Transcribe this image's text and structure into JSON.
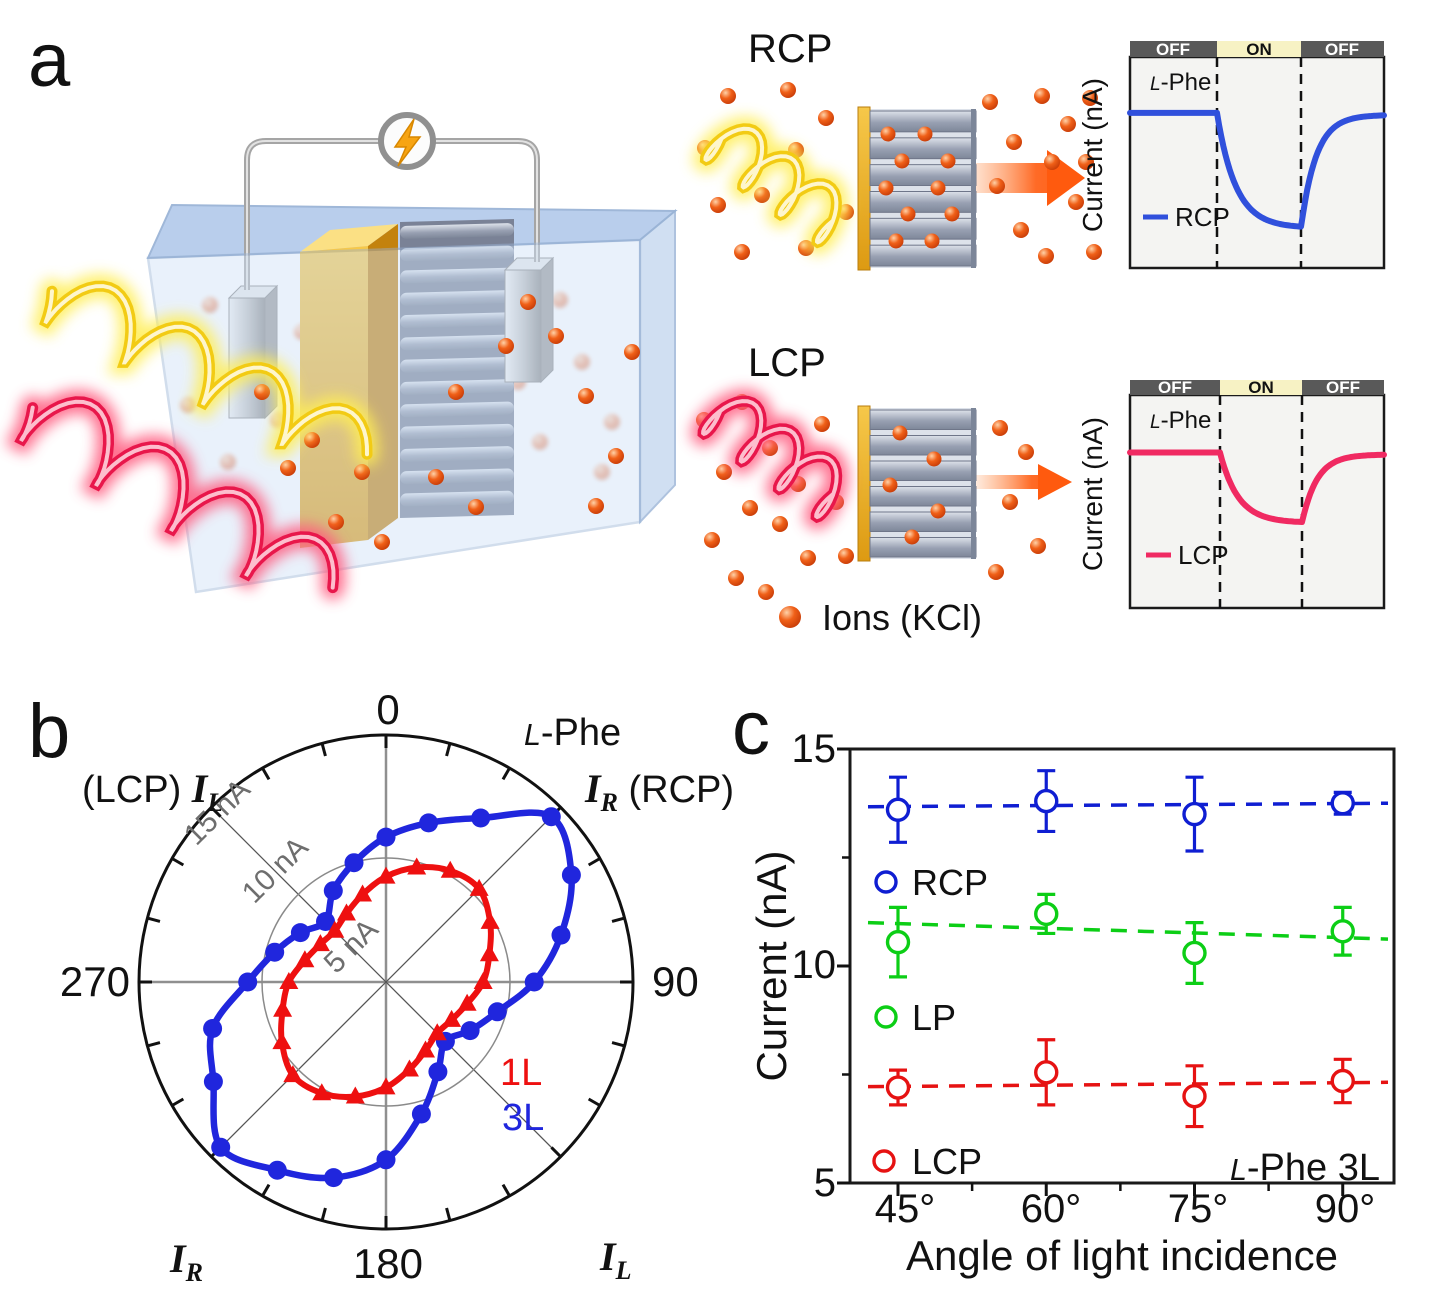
{
  "colors": {
    "rcp_blue": "#3050DC",
    "lcp_pink": "#F02A62",
    "polar_blue": "#2026DD",
    "polar_red": "#EE1010",
    "c_blue": "#0F1ED2",
    "c_green": "#0CCE16",
    "c_red": "#E61212",
    "ion_orange": "#F15A17",
    "arrow_orange": "#FF5A0E",
    "gold": "#E9A51F",
    "header_off_bg": "#595959",
    "header_on_bg": "#F7F2C4",
    "chart_bg": "#F4F4F2"
  },
  "panel_a": {
    "label": "a",
    "rcp_title": "RCP",
    "lcp_title": "LCP",
    "ions_legend_label": "Ions (KCl)",
    "mini_chart": {
      "off_label": "OFF",
      "on_label": "ON",
      "y_axis_label": "Current (nA)",
      "sample_label_italic": "L",
      "sample_label_rest": "-Phe",
      "rcp_series_label": "RCP",
      "lcp_series_label": "LCP"
    }
  },
  "panel_b": {
    "label": "b",
    "title": {
      "italic": "L",
      "rest": "-Phe"
    },
    "angle_ticks": [
      "0",
      "90",
      "180",
      "270"
    ],
    "radial_tick_labels": [
      "5 nA",
      "10 nA",
      "15 nA"
    ],
    "axis_top_left": {
      "prefix": "(LCP) ",
      "symbol": "I",
      "sub": "L"
    },
    "axis_top_right": {
      "symbol": "I",
      "sub": "R",
      "suffix": " (RCP)"
    },
    "axis_bottom_left": {
      "symbol": "I",
      "sub": "R"
    },
    "axis_bottom_right": {
      "symbol": "I",
      "sub": "L"
    },
    "legend_1l": "1L",
    "legend_3l": "3L"
  },
  "panel_c": {
    "label": "c",
    "y_ticks": [
      "15",
      "10",
      "5"
    ],
    "x_ticks": [
      "45°",
      "60°",
      "75°",
      "90°"
    ],
    "y_axis_label": "Current (nA)",
    "x_axis_label": "Angle of light incidence",
    "legend": [
      "RCP",
      "LP",
      "LCP"
    ],
    "annotation": {
      "italic": "L",
      "rest": "-Phe 3L"
    }
  },
  "chart_data": [
    {
      "id": "polar-photocurrent",
      "type": "line",
      "coordinate_system": "polar",
      "title": "L-Phe",
      "angle_unit": "degrees clockwise from top",
      "radial_unit": "nA",
      "radial_ticks": [
        5,
        10,
        15
      ],
      "radial_max": 15,
      "series": [
        {
          "name": "3L",
          "color_key": "polar_blue",
          "marker": "circle",
          "points": [
            [
              0,
              8.8
            ],
            [
              15,
              10.0
            ],
            [
              30,
              11.5
            ],
            [
              45,
              14.2
            ],
            [
              60,
              13.0
            ],
            [
              75,
              11.0
            ],
            [
              90,
              9.0
            ],
            [
              105,
              7.0
            ],
            [
              120,
              5.9
            ],
            [
              135,
              5.1
            ],
            [
              150,
              6.3
            ],
            [
              165,
              8.3
            ],
            [
              180,
              10.8
            ],
            [
              195,
              12.3
            ],
            [
              210,
              13.2
            ],
            [
              225,
              14.2
            ],
            [
              240,
              12.1
            ],
            [
              255,
              10.9
            ],
            [
              270,
              8.4
            ],
            [
              285,
              7.0
            ],
            [
              300,
              6.0
            ],
            [
              315,
              5.2
            ],
            [
              330,
              6.4
            ],
            [
              345,
              7.5
            ]
          ]
        },
        {
          "name": "1L",
          "color_key": "polar_red",
          "marker": "triangle",
          "points": [
            [
              0,
              6.4
            ],
            [
              15,
              7.2
            ],
            [
              30,
              7.8
            ],
            [
              45,
              8.0
            ],
            [
              60,
              7.3
            ],
            [
              75,
              6.5
            ],
            [
              90,
              5.9
            ],
            [
              105,
              5.1
            ],
            [
              120,
              4.6
            ],
            [
              135,
              4.4
            ],
            [
              150,
              4.8
            ],
            [
              165,
              5.5
            ],
            [
              180,
              6.4
            ],
            [
              195,
              7.2
            ],
            [
              210,
              7.8
            ],
            [
              225,
              8.0
            ],
            [
              240,
              7.3
            ],
            [
              255,
              6.5
            ],
            [
              270,
              5.9
            ],
            [
              285,
              5.1
            ],
            [
              300,
              4.6
            ],
            [
              315,
              4.4
            ],
            [
              330,
              4.8
            ],
            [
              345,
              5.5
            ]
          ]
        }
      ]
    },
    {
      "id": "angle-dependence",
      "type": "scatter",
      "x": [
        45,
        60,
        75,
        90
      ],
      "x_unit": "degrees",
      "xlabel": "Angle of light incidence",
      "ylabel": "Current (nA)",
      "ylim": [
        5,
        15
      ],
      "y_ticks": [
        5,
        10,
        15
      ],
      "annotation": "L-Phe 3L",
      "series": [
        {
          "name": "RCP",
          "color_key": "c_blue",
          "values": [
            13.6,
            13.8,
            13.5,
            13.75
          ],
          "errors": [
            0.75,
            0.7,
            0.85,
            0.25
          ],
          "trend": [
            13.67,
            13.75
          ]
        },
        {
          "name": "LP",
          "color_key": "c_green",
          "values": [
            10.55,
            11.2,
            10.3,
            10.8
          ],
          "errors": [
            0.8,
            0.45,
            0.7,
            0.55
          ],
          "trend": [
            11.0,
            10.62
          ]
        },
        {
          "name": "LCP",
          "color_key": "c_red",
          "values": [
            7.2,
            7.55,
            7.0,
            7.35
          ],
          "errors": [
            0.4,
            0.75,
            0.7,
            0.5
          ],
          "trend": [
            7.22,
            7.32
          ]
        }
      ]
    },
    {
      "id": "rcp-on-off",
      "type": "line",
      "title": "L-Phe",
      "phases": [
        "OFF",
        "ON",
        "OFF"
      ],
      "ylabel": "Current (nA)",
      "series": [
        {
          "name": "RCP",
          "color_key": "rcp_blue",
          "description": "current decreases exponentially during ON, recovers after light off",
          "baseline_frac": 0.265,
          "dip_frac": 0.81
        }
      ]
    },
    {
      "id": "lcp-on-off",
      "type": "line",
      "title": "L-Phe",
      "phases": [
        "OFF",
        "ON",
        "OFF"
      ],
      "ylabel": "Current (nA)",
      "series": [
        {
          "name": "LCP",
          "color_key": "lcp_pink",
          "description": "smaller current decrease during ON, recovers after light off",
          "baseline_frac": 0.27,
          "dip_frac": 0.6
        }
      ]
    }
  ]
}
